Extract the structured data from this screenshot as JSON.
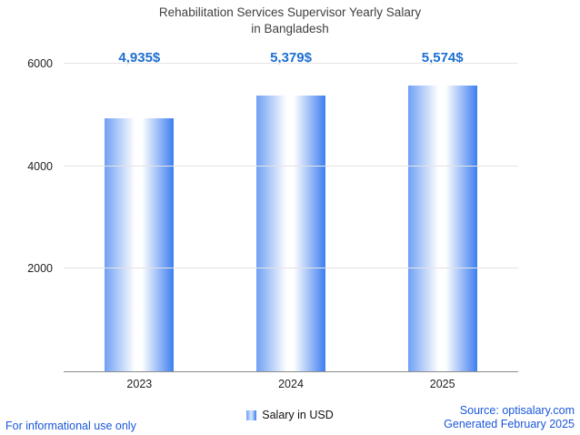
{
  "chart_data": {
    "type": "bar",
    "title_line1": "Rehabilitation Services Supervisor Yearly Salary",
    "title_line2": "in Bangladesh",
    "categories": [
      "2023",
      "2024",
      "2025"
    ],
    "values": [
      4935,
      5379,
      5574
    ],
    "value_labels": [
      "4,935$",
      "5,379$",
      "5,574$"
    ],
    "series_name": "Salary in USD",
    "xlabel": "",
    "ylabel": "",
    "ylim": [
      0,
      6000
    ],
    "yticks": [
      2000,
      4000,
      6000
    ],
    "grid": true,
    "legend_position": "bottom"
  },
  "legend": {
    "label": "Salary in USD"
  },
  "footer": {
    "left": "For informational use only",
    "source": "Source: optisalary.com",
    "generated": "Generated February 2025"
  },
  "colors": {
    "accent_blue": "#1d6fd1",
    "link_blue": "#1a56db",
    "bar_edge_left": "#6fa0f4",
    "bar_edge_right": "#3d7ef0",
    "bar_center": "#ffffff",
    "grid_gray": "#e3e3e3",
    "axis_gray": "#8c8c8c",
    "title_gray": "#3f3f3f"
  }
}
